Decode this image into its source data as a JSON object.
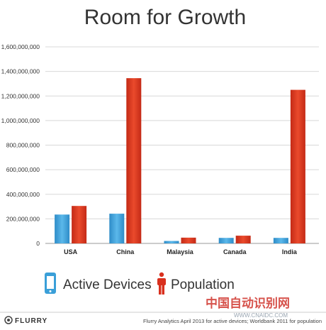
{
  "chart_data": {
    "type": "bar",
    "title": "Room for Growth",
    "categories": [
      "USA",
      "China",
      "Malaysia",
      "Canada",
      "India"
    ],
    "series": [
      {
        "name": "Active Devices",
        "values": [
          235000000,
          242000000,
          20000000,
          45000000,
          45000000
        ],
        "color": "#3a9fd8"
      },
      {
        "name": "Population",
        "values": [
          305000000,
          1345000000,
          47000000,
          63000000,
          1250000000
        ],
        "color": "#d9301e"
      }
    ],
    "ylim": [
      0,
      1600000000
    ],
    "yticks": [
      0,
      200000000,
      400000000,
      600000000,
      800000000,
      1000000000,
      1200000000,
      1400000000,
      1600000000
    ],
    "ytick_labels": [
      "0",
      "200,000,000",
      "400,000,000",
      "600,000,000",
      "800,000,000",
      "1,000,000,000",
      "1,200,000,000",
      "1,400,000,000",
      "1,600,000,000"
    ],
    "xlabel": "",
    "ylabel": "",
    "grid": true,
    "legend": {
      "placement": "bottom-left",
      "icons": [
        "phone-icon",
        "person-icon"
      ]
    }
  },
  "footer": {
    "logo": "FLURRY",
    "note": "Flurry Analytics April 2013 for active devices; Worldbank 2011 for population"
  },
  "watermark": {
    "text": "中国自动识别网",
    "subtext": "WWW.CNAIDC.COM"
  }
}
